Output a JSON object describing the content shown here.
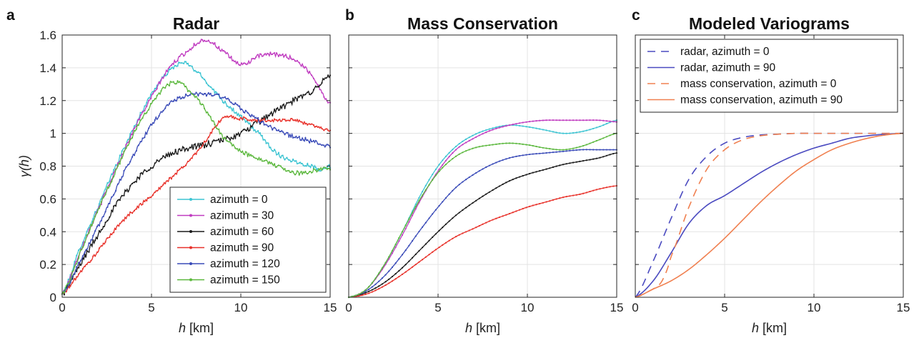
{
  "chart_data": [
    {
      "panel_label": "a",
      "type": "line",
      "title": "Radar",
      "xlabel_italic": "h",
      "xlabel_unit": " [km]",
      "ylabel": "γ(h)",
      "xlim": [
        0,
        15
      ],
      "ylim": [
        0,
        1.6
      ],
      "xticks": [
        0,
        5,
        10,
        15
      ],
      "yticks": [
        0,
        0.2,
        0.4,
        0.6,
        0.8,
        1,
        1.2,
        1.4,
        1.6
      ],
      "ytick_labels": [
        "0",
        "0.2",
        "0.4",
        "0.6",
        "0.8",
        "1",
        "1.2",
        "1.4",
        "1.6"
      ],
      "grid": true,
      "legend_position": "bottom-right",
      "series": [
        {
          "name": "azimuth = 0",
          "color": "#3cc4d2",
          "marker": "dot",
          "dash": "solid",
          "noise": 0.012,
          "x": [
            0,
            1,
            2,
            3,
            4,
            5,
            6,
            6.8,
            7.5,
            8,
            9,
            10,
            11,
            12,
            13,
            14,
            14.5,
            15
          ],
          "y": [
            0.02,
            0.3,
            0.55,
            0.8,
            1.03,
            1.24,
            1.38,
            1.43,
            1.38,
            1.32,
            1.2,
            1.1,
            1.0,
            0.88,
            0.83,
            0.8,
            0.78,
            0.8
          ]
        },
        {
          "name": "azimuth = 30",
          "color": "#c03cc0",
          "marker": "dot",
          "dash": "solid",
          "noise": 0.012,
          "x": [
            0,
            1,
            2,
            3,
            4,
            5,
            6,
            7,
            8,
            9,
            10,
            11,
            12,
            13,
            14,
            15
          ],
          "y": [
            0.02,
            0.28,
            0.53,
            0.78,
            1.02,
            1.22,
            1.4,
            1.5,
            1.57,
            1.5,
            1.42,
            1.47,
            1.48,
            1.45,
            1.35,
            1.18
          ]
        },
        {
          "name": "azimuth = 60",
          "color": "#1a1a1a",
          "marker": "dot",
          "dash": "solid",
          "noise": 0.018,
          "x": [
            0,
            1,
            2,
            3,
            4,
            5,
            6,
            7,
            8,
            9,
            10,
            11,
            12,
            13,
            14,
            15
          ],
          "y": [
            0.02,
            0.2,
            0.38,
            0.56,
            0.7,
            0.8,
            0.87,
            0.91,
            0.93,
            0.96,
            1.0,
            1.07,
            1.14,
            1.2,
            1.26,
            1.35
          ]
        },
        {
          "name": "azimuth = 90",
          "color": "#e8312a",
          "marker": "dot",
          "dash": "solid",
          "noise": 0.01,
          "x": [
            0,
            1,
            2,
            3,
            4,
            5,
            6,
            7,
            8,
            9,
            10,
            11,
            12,
            13,
            14,
            15
          ],
          "y": [
            0.02,
            0.15,
            0.28,
            0.42,
            0.53,
            0.62,
            0.72,
            0.82,
            0.95,
            1.09,
            1.09,
            1.08,
            1.08,
            1.08,
            1.05,
            1.02
          ]
        },
        {
          "name": "azimuth = 120",
          "color": "#3a4bb8",
          "marker": "dot",
          "dash": "solid",
          "noise": 0.012,
          "x": [
            0,
            1,
            2,
            3,
            4,
            5,
            6,
            7,
            8,
            9,
            10,
            11,
            12,
            13,
            14,
            15
          ],
          "y": [
            0.02,
            0.22,
            0.43,
            0.66,
            0.87,
            1.05,
            1.18,
            1.23,
            1.24,
            1.22,
            1.15,
            1.08,
            1.02,
            0.98,
            0.95,
            0.92
          ]
        },
        {
          "name": "azimuth = 150",
          "color": "#5cb83e",
          "marker": "dot",
          "dash": "solid",
          "noise": 0.012,
          "x": [
            0,
            1,
            2,
            3,
            4,
            5,
            6,
            6.5,
            7,
            8,
            9,
            10,
            11,
            12,
            13,
            14,
            15
          ],
          "y": [
            0.02,
            0.27,
            0.53,
            0.77,
            1.0,
            1.18,
            1.3,
            1.31,
            1.27,
            1.15,
            0.98,
            0.89,
            0.85,
            0.8,
            0.76,
            0.77,
            0.79
          ]
        }
      ]
    },
    {
      "panel_label": "b",
      "type": "line",
      "title": "Mass Conservation",
      "xlabel_italic": "h",
      "xlabel_unit": " [km]",
      "ylabel": "",
      "xlim": [
        0,
        15
      ],
      "ylim": [
        0,
        1.6
      ],
      "xticks": [
        0,
        5,
        10,
        15
      ],
      "yticks": [
        0,
        0.2,
        0.4,
        0.6,
        0.8,
        1,
        1.2,
        1.4,
        1.6
      ],
      "ytick_labels": [],
      "grid": true,
      "series": [
        {
          "name": "azimuth = 0",
          "color": "#3cc4d2",
          "marker": "dot",
          "dash": "solid",
          "noise": 0,
          "x": [
            0,
            1,
            2,
            3,
            4,
            5,
            6,
            7,
            8,
            9,
            10,
            11,
            12,
            13,
            14,
            15
          ],
          "y": [
            0,
            0.05,
            0.2,
            0.4,
            0.62,
            0.8,
            0.92,
            0.99,
            1.03,
            1.05,
            1.04,
            1.02,
            1.0,
            1.01,
            1.04,
            1.08
          ]
        },
        {
          "name": "azimuth = 30",
          "color": "#c03cc0",
          "marker": "dot",
          "dash": "solid",
          "noise": 0,
          "x": [
            0,
            1,
            2,
            3,
            4,
            5,
            6,
            7,
            8,
            9,
            10,
            11,
            12,
            13,
            14,
            15
          ],
          "y": [
            0,
            0.05,
            0.19,
            0.38,
            0.59,
            0.77,
            0.9,
            0.97,
            1.02,
            1.05,
            1.07,
            1.08,
            1.08,
            1.08,
            1.08,
            1.07
          ]
        },
        {
          "name": "azimuth = 60",
          "color": "#1a1a1a",
          "marker": "dot",
          "dash": "solid",
          "noise": 0,
          "x": [
            0,
            1,
            2,
            3,
            4,
            5,
            6,
            7,
            8,
            9,
            10,
            11,
            12,
            13,
            14,
            15
          ],
          "y": [
            0,
            0.03,
            0.09,
            0.18,
            0.29,
            0.4,
            0.5,
            0.58,
            0.65,
            0.71,
            0.75,
            0.78,
            0.81,
            0.83,
            0.85,
            0.88
          ]
        },
        {
          "name": "azimuth = 90",
          "color": "#e8312a",
          "marker": "dot",
          "dash": "solid",
          "noise": 0,
          "x": [
            0,
            1,
            2,
            3,
            4,
            5,
            6,
            7,
            8,
            9,
            10,
            11,
            12,
            13,
            14,
            15
          ],
          "y": [
            0,
            0.02,
            0.07,
            0.14,
            0.22,
            0.3,
            0.37,
            0.42,
            0.47,
            0.51,
            0.55,
            0.58,
            0.61,
            0.63,
            0.66,
            0.68
          ]
        },
        {
          "name": "azimuth = 120",
          "color": "#3a4bb8",
          "marker": "dot",
          "dash": "solid",
          "noise": 0,
          "x": [
            0,
            1,
            2,
            3,
            4,
            5,
            6,
            7,
            8,
            9,
            10,
            11,
            12,
            13,
            14,
            15
          ],
          "y": [
            0,
            0.04,
            0.13,
            0.26,
            0.41,
            0.55,
            0.67,
            0.75,
            0.81,
            0.85,
            0.87,
            0.88,
            0.89,
            0.9,
            0.9,
            0.9
          ]
        },
        {
          "name": "azimuth = 150",
          "color": "#5cb83e",
          "marker": "dot",
          "dash": "solid",
          "noise": 0,
          "x": [
            0,
            1,
            2,
            3,
            4,
            5,
            6,
            7,
            8,
            9,
            10,
            11,
            12,
            13,
            14,
            15
          ],
          "y": [
            0,
            0.05,
            0.2,
            0.4,
            0.6,
            0.76,
            0.86,
            0.91,
            0.93,
            0.94,
            0.93,
            0.91,
            0.9,
            0.92,
            0.96,
            1.0
          ]
        }
      ]
    },
    {
      "panel_label": "c",
      "type": "line",
      "title": "Modeled Variograms",
      "xlabel_italic": "h",
      "xlabel_unit": " [km]",
      "ylabel": "",
      "xlim": [
        0,
        15
      ],
      "ylim": [
        0,
        1.6
      ],
      "xticks": [
        0,
        5,
        10,
        15
      ],
      "yticks": [
        0,
        0.2,
        0.4,
        0.6,
        0.8,
        1,
        1.2,
        1.4,
        1.6
      ],
      "ytick_labels": [],
      "grid": true,
      "legend_position": "top-left",
      "series": [
        {
          "name": "radar, azimuth = 0",
          "color": "#4a4ac0",
          "marker": "none",
          "dash": "dashed",
          "noise": 0,
          "x": [
            0,
            1,
            2,
            3,
            4,
            5,
            6,
            7,
            8,
            9,
            10,
            11,
            12,
            13,
            14,
            15
          ],
          "y": [
            0,
            0.22,
            0.48,
            0.72,
            0.86,
            0.94,
            0.975,
            0.99,
            0.995,
            1.0,
            1.0,
            1.0,
            1.0,
            1.0,
            1.0,
            1.0
          ]
        },
        {
          "name": "radar, azimuth = 90",
          "color": "#4a4ac0",
          "marker": "none",
          "dash": "solid",
          "noise": 0,
          "x": [
            0,
            1,
            2,
            3,
            4,
            5,
            6,
            7,
            8,
            9,
            10,
            11,
            12,
            13,
            14,
            15
          ],
          "y": [
            0,
            0.1,
            0.27,
            0.45,
            0.56,
            0.62,
            0.69,
            0.76,
            0.82,
            0.87,
            0.91,
            0.94,
            0.97,
            0.985,
            0.995,
            1.0
          ]
        },
        {
          "name": "mass conservation, azimuth = 0",
          "color": "#f08050",
          "marker": "none",
          "dash": "dashed",
          "noise": 0,
          "x": [
            0,
            1,
            1.5,
            2,
            3,
            4,
            5,
            6,
            7,
            8,
            9,
            10,
            11,
            12,
            13,
            14,
            15
          ],
          "y": [
            0,
            0.05,
            0.1,
            0.25,
            0.55,
            0.78,
            0.9,
            0.96,
            0.985,
            0.995,
            1.0,
            1.0,
            1.0,
            1.0,
            1.0,
            1.0,
            1.0
          ]
        },
        {
          "name": "mass conservation, azimuth = 90",
          "color": "#f08050",
          "marker": "none",
          "dash": "solid",
          "noise": 0,
          "x": [
            0,
            1,
            2,
            3,
            4,
            5,
            6,
            7,
            8,
            9,
            10,
            11,
            12,
            13,
            14,
            15
          ],
          "y": [
            0,
            0.05,
            0.1,
            0.17,
            0.26,
            0.36,
            0.47,
            0.58,
            0.68,
            0.77,
            0.84,
            0.9,
            0.94,
            0.97,
            0.99,
            1.0
          ]
        }
      ]
    }
  ]
}
